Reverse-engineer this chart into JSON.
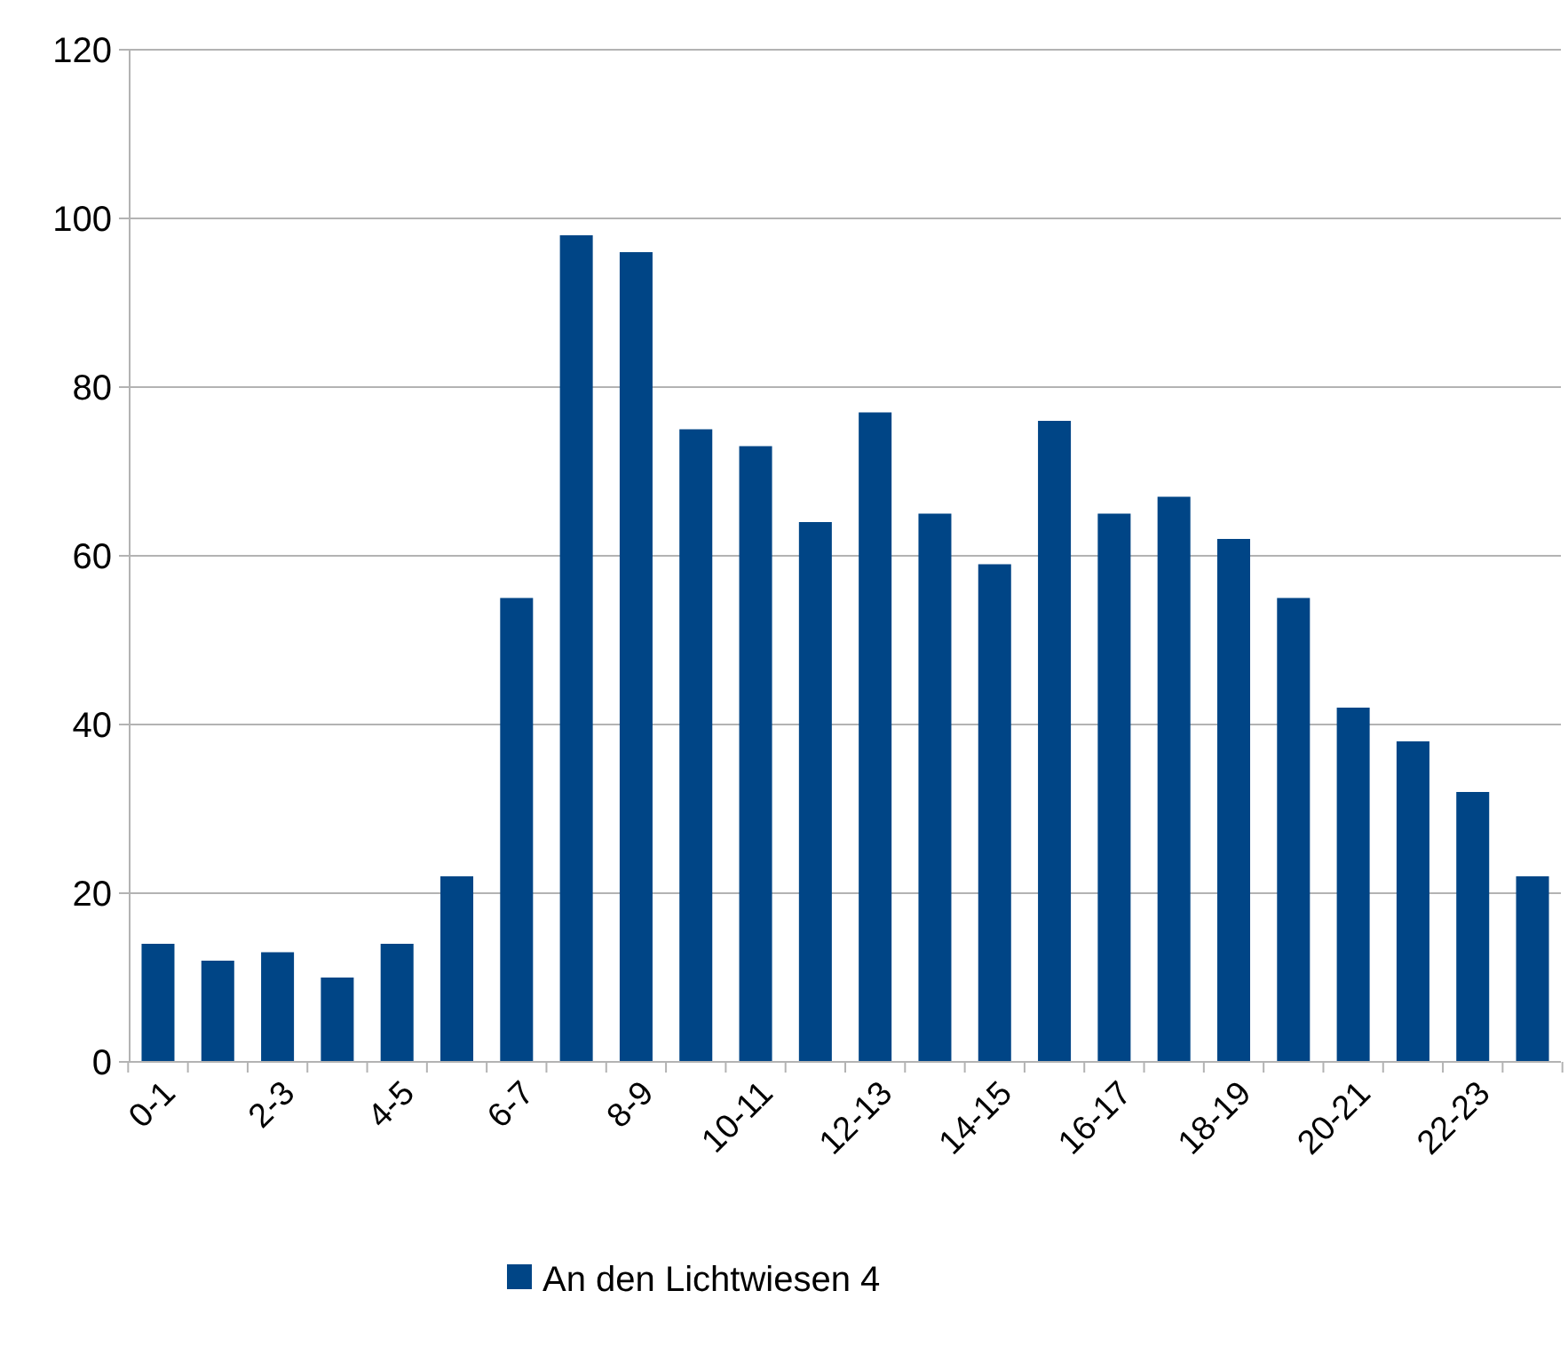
{
  "chart_data": {
    "type": "bar",
    "categories": [
      "0-1",
      null,
      "2-3",
      null,
      "4-5",
      null,
      "6-7",
      null,
      "8-9",
      null,
      "10-11",
      null,
      "12-13",
      null,
      "14-15",
      null,
      "16-17",
      null,
      "18-19",
      null,
      "20-21",
      null,
      "22-23",
      null
    ],
    "series": [
      {
        "name": "An den Lichtwiesen 4",
        "color": "#004586",
        "values": [
          14,
          12,
          13,
          10,
          14,
          22,
          55,
          98,
          96,
          75,
          73,
          64,
          77,
          65,
          59,
          76,
          65,
          67,
          62,
          55,
          42,
          38,
          32,
          22
        ]
      }
    ],
    "ylim": [
      0,
      120
    ],
    "yticks": [
      0,
      20,
      40,
      60,
      80,
      100,
      120
    ],
    "grid": "y",
    "legend": "bottom"
  }
}
